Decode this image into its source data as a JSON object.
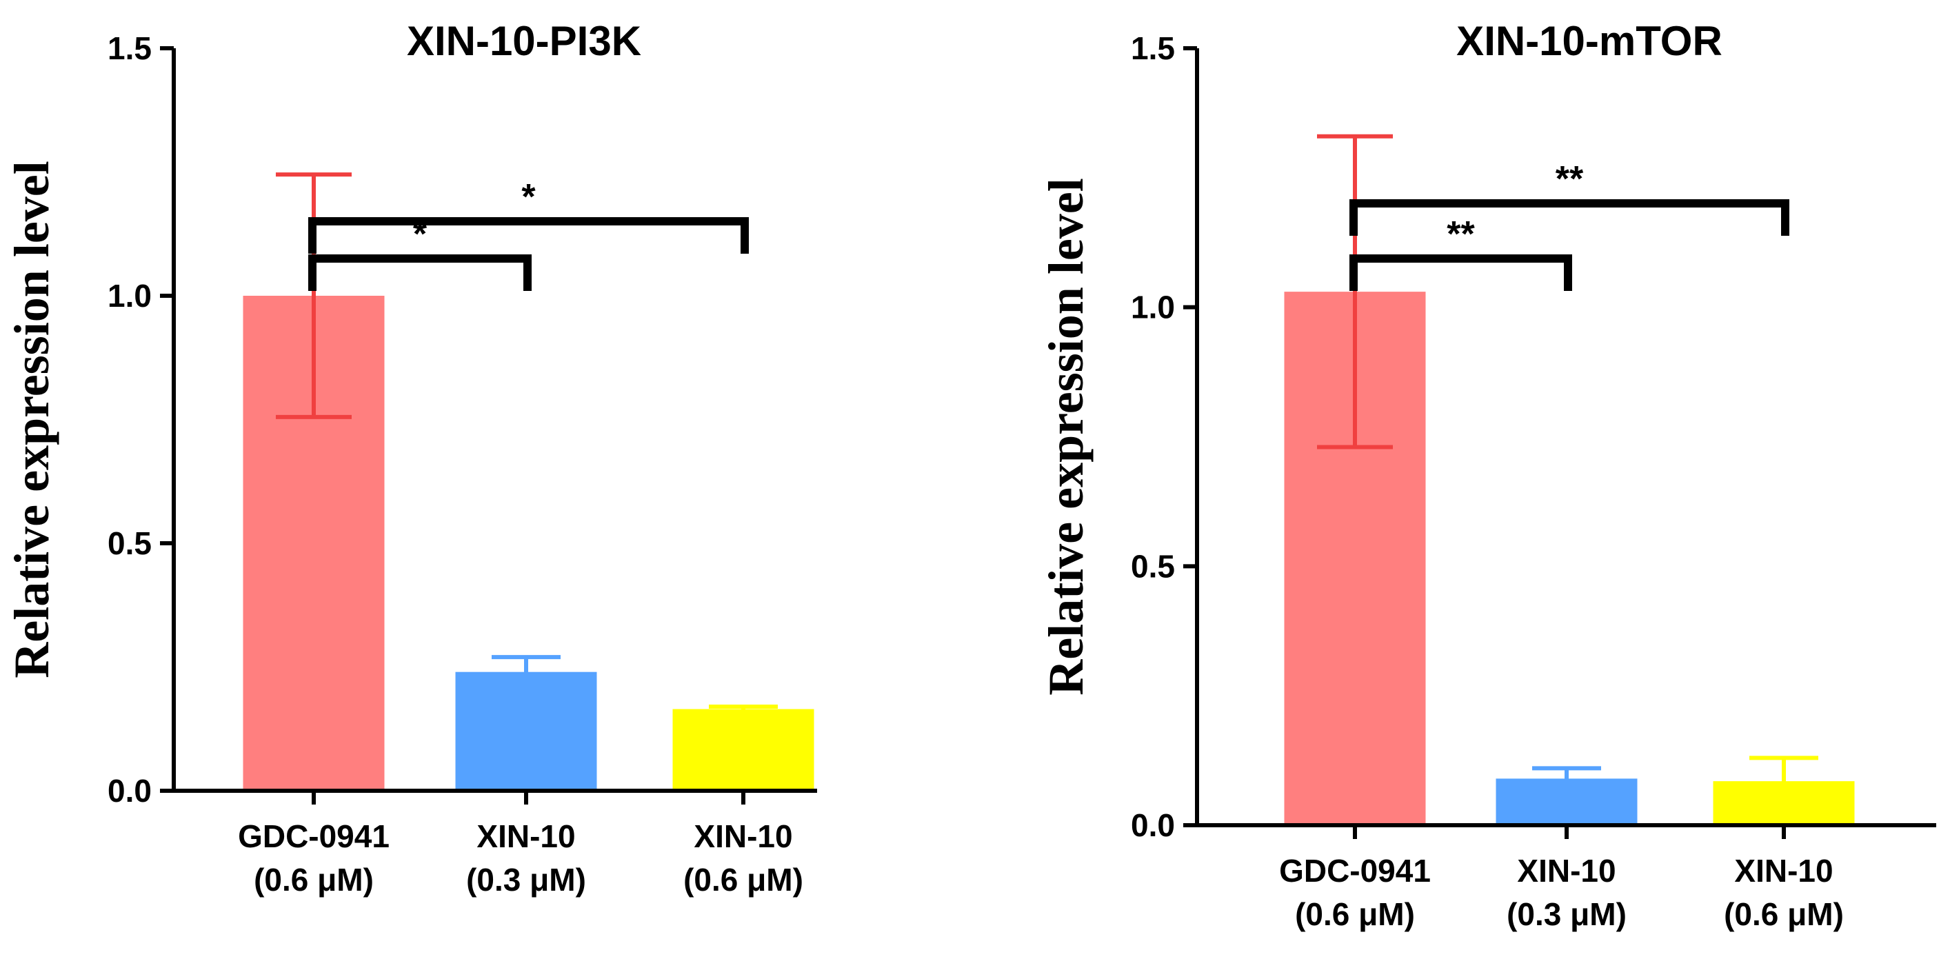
{
  "chart_data": [
    {
      "type": "bar",
      "title": "XIN-10-PI3K",
      "ylabel": "Relative expression level",
      "xlabel": "",
      "ylim": [
        0,
        1.5
      ],
      "yticks": [
        "0.0",
        "0.5",
        "1.0",
        "1.5"
      ],
      "categories": [
        {
          "line1": "GDC-0941",
          "line2": "(0.6 μM)"
        },
        {
          "line1": "XIN-10",
          "line2": "(0.3 μM)"
        },
        {
          "line1": "XIN-10",
          "line2": "(0.6 μM)"
        }
      ],
      "values": [
        1.0,
        0.24,
        0.165
      ],
      "errors": [
        0.245,
        0.03,
        0.005
      ],
      "colors": [
        "#FF7F7F",
        "#55A2FF",
        "#FFFF00"
      ],
      "error_colors": [
        "#F04040",
        "#55A2FF",
        "#FFFF00"
      ],
      "significance": [
        {
          "from": 0,
          "to": 1,
          "label": "*"
        },
        {
          "from": 0,
          "to": 2,
          "label": "*"
        }
      ]
    },
    {
      "type": "bar",
      "title": "XIN-10-mTOR",
      "ylabel": "Relative expression level",
      "xlabel": "",
      "ylim": [
        0,
        1.5
      ],
      "yticks": [
        "0.0",
        "0.5",
        "1.0",
        "1.5"
      ],
      "categories": [
        {
          "line1": "GDC-0941",
          "line2": "(0.6 μM)"
        },
        {
          "line1": "XIN-10",
          "line2": "(0.3 μM)"
        },
        {
          "line1": "XIN-10",
          "line2": "(0.6 μM)"
        }
      ],
      "values": [
        1.03,
        0.09,
        0.085
      ],
      "errors": [
        0.3,
        0.02,
        0.045
      ],
      "colors": [
        "#FF7F7F",
        "#55A2FF",
        "#FFFF00"
      ],
      "error_colors": [
        "#F04040",
        "#55A2FF",
        "#FFFF00"
      ],
      "significance": [
        {
          "from": 0,
          "to": 1,
          "label": "**"
        },
        {
          "from": 0,
          "to": 2,
          "label": "**"
        }
      ]
    }
  ]
}
